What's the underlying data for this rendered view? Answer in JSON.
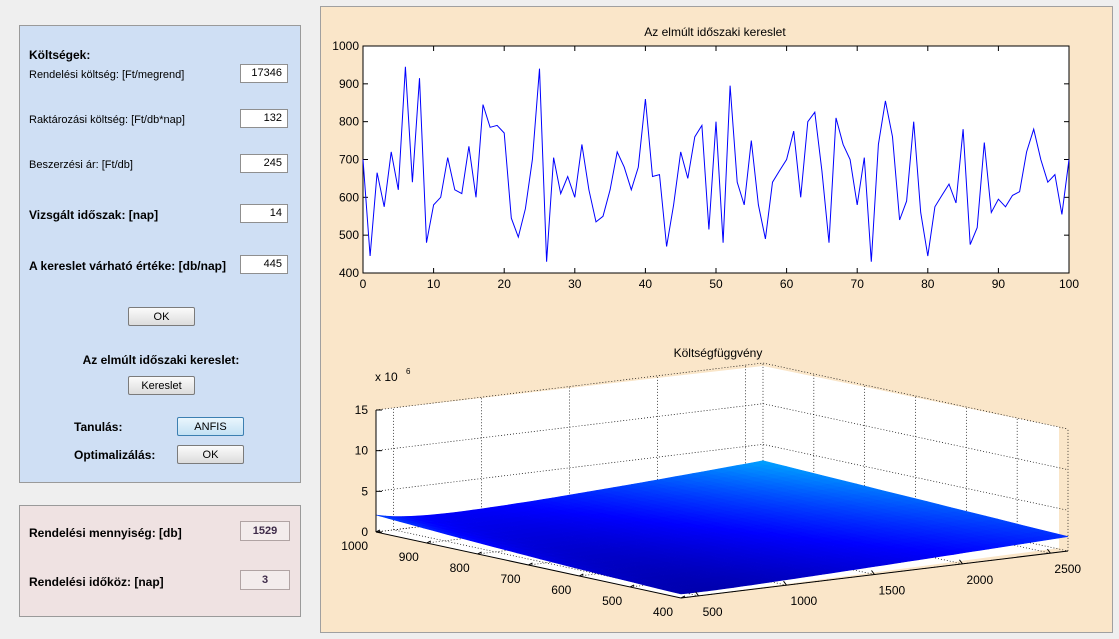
{
  "costs": {
    "heading": "Költségek:",
    "order_cost_label": "Rendelési költség: [Ft/megrend]",
    "order_cost_value": "17346",
    "storage_cost_label": "Raktározási költség: [Ft/db*nap]",
    "storage_cost_value": "132",
    "purchase_price_label": "Beszerzési ár: [Ft/db]",
    "purchase_price_value": "245",
    "period_label": "Vizsgált időszak: [nap]",
    "period_value": "14",
    "demand_mean_label": "A kereslet várható értéke: [db/nap]",
    "demand_mean_value": "445",
    "ok_button": "OK",
    "past_demand_label": "Az elmúlt időszaki kereslet:",
    "demand_button": "Kereslet",
    "learning_label": "Tanulás:",
    "anfis_button": "ANFIS",
    "optimization_label": "Optimalizálás:",
    "optimize_button": "OK"
  },
  "results": {
    "order_qty_label": "Rendelési mennyiség: [db]",
    "order_qty_value": "1529",
    "order_interval_label": "Rendelési időköz: [nap]",
    "order_interval_value": "3"
  },
  "colors": {
    "line": "#0000ff",
    "costs_bg": "#cfdff4",
    "result_bg": "#efe2e2",
    "plot_bg": "#fae6c9"
  },
  "chart_data": [
    {
      "type": "line",
      "title": "Az elmúlt időszaki kereslet",
      "xlabel": "",
      "ylabel": "",
      "xlim": [
        0,
        100
      ],
      "ylim": [
        400,
        1000
      ],
      "xticks": [
        0,
        10,
        20,
        30,
        40,
        50,
        60,
        70,
        80,
        90,
        100
      ],
      "yticks": [
        400,
        500,
        600,
        700,
        800,
        900,
        1000
      ],
      "x": [
        0,
        1,
        2,
        3,
        4,
        5,
        6,
        7,
        8,
        9,
        10,
        11,
        12,
        13,
        14,
        15,
        16,
        17,
        18,
        19,
        20,
        21,
        22,
        23,
        24,
        25,
        26,
        27,
        28,
        29,
        30,
        31,
        32,
        33,
        34,
        35,
        36,
        37,
        38,
        39,
        40,
        41,
        42,
        43,
        44,
        45,
        46,
        47,
        48,
        49,
        50,
        51,
        52,
        53,
        54,
        55,
        56,
        57,
        58,
        59,
        60,
        61,
        62,
        63,
        64,
        65,
        66,
        67,
        68,
        69,
        70,
        71,
        72,
        73,
        74,
        75,
        76,
        77,
        78,
        79,
        80,
        81,
        82,
        83,
        84,
        85,
        86,
        87,
        88,
        89,
        90,
        91,
        92,
        93,
        94,
        95,
        96,
        97,
        98,
        99,
        100
      ],
      "values": [
        700,
        445,
        665,
        575,
        720,
        620,
        945,
        640,
        915,
        480,
        580,
        600,
        705,
        620,
        610,
        735,
        600,
        845,
        785,
        790,
        770,
        545,
        495,
        570,
        700,
        940,
        430,
        705,
        610,
        655,
        600,
        740,
        620,
        535,
        550,
        620,
        720,
        680,
        620,
        680,
        860,
        655,
        660,
        470,
        580,
        720,
        650,
        760,
        790,
        515,
        800,
        480,
        895,
        640,
        580,
        750,
        580,
        490,
        640,
        670,
        700,
        775,
        600,
        800,
        825,
        670,
        480,
        810,
        740,
        700,
        580,
        705,
        430,
        740,
        855,
        760,
        540,
        590,
        800,
        560,
        445,
        575,
        605,
        635,
        585,
        780,
        475,
        520,
        745,
        560,
        595,
        575,
        605,
        615,
        720,
        780,
        700,
        640,
        660,
        555,
        700
      ],
      "grid": false
    },
    {
      "type": "surface",
      "title": "Költségfüggvény",
      "z_exponent_label": "x 10",
      "z_exponent": "6",
      "x_ticks": [
        400,
        500,
        600,
        700,
        800,
        900,
        1000
      ],
      "y_ticks": [
        500,
        1000,
        1500,
        2000,
        2500
      ],
      "z_ticks": [
        0,
        5,
        10,
        15
      ],
      "zlim": [
        0,
        15
      ],
      "grid": true,
      "colormap": "jet"
    }
  ]
}
